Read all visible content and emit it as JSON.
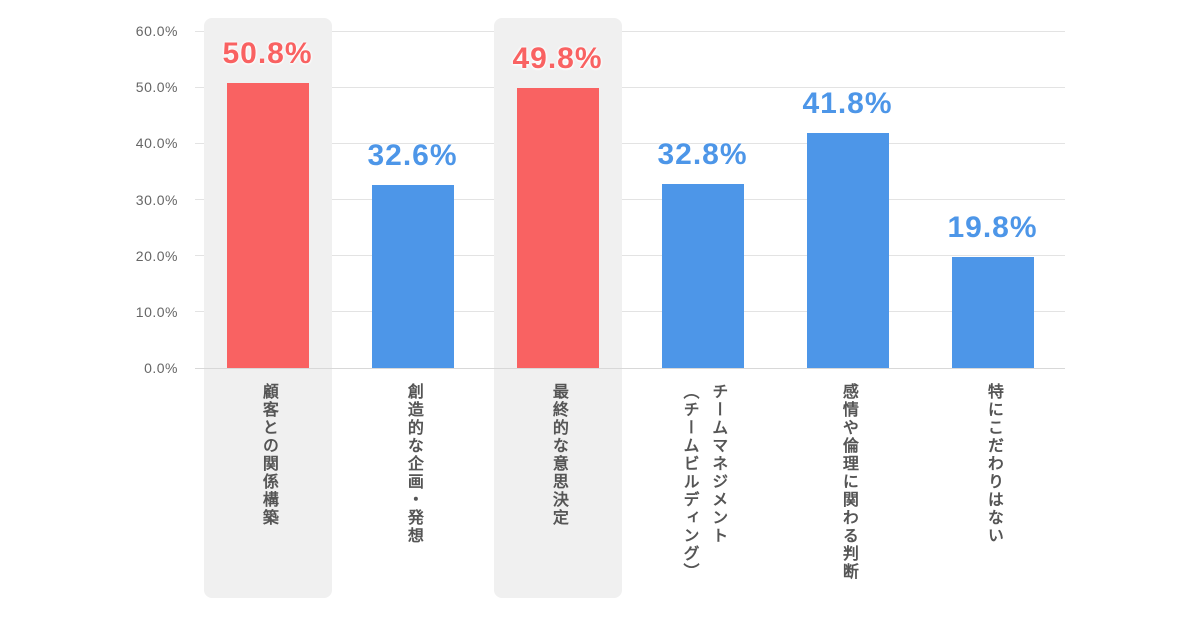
{
  "chart_data": {
    "type": "bar",
    "title": "",
    "xlabel": "",
    "ylabel": "",
    "categories": [
      "顧客との関係構築",
      "創造的な企画・発想",
      "最終的な意思決定",
      "チームマネジメント\n（チームビルディング）",
      "感情や倫理に関わる判断",
      "特にこだわりはない"
    ],
    "values": [
      50.8,
      32.6,
      49.8,
      32.8,
      41.8,
      19.8
    ],
    "value_labels": [
      "50.8%",
      "32.6%",
      "49.8%",
      "32.8%",
      "41.8%",
      "19.8%"
    ],
    "highlighted": [
      true,
      false,
      true,
      false,
      false,
      false
    ],
    "ylim": [
      0,
      60
    ],
    "y_ticks": [
      "0.0%",
      "10.0%",
      "20.0%",
      "30.0%",
      "40.0%",
      "50.0%",
      "60.0%"
    ],
    "grid": true,
    "legend": false,
    "colors": {
      "highlight_bar": "#F96262",
      "normal_bar": "#4D96E8",
      "highlight_value_label": "#F96262",
      "normal_value_label": "#4D96E8",
      "band_background": "#F0F0F0",
      "gridline": "#E3E3E3",
      "baseline": "#D8D8D8",
      "axis_tick_text": "#666666",
      "category_text": "#555555",
      "background": "#FFFFFF"
    }
  }
}
